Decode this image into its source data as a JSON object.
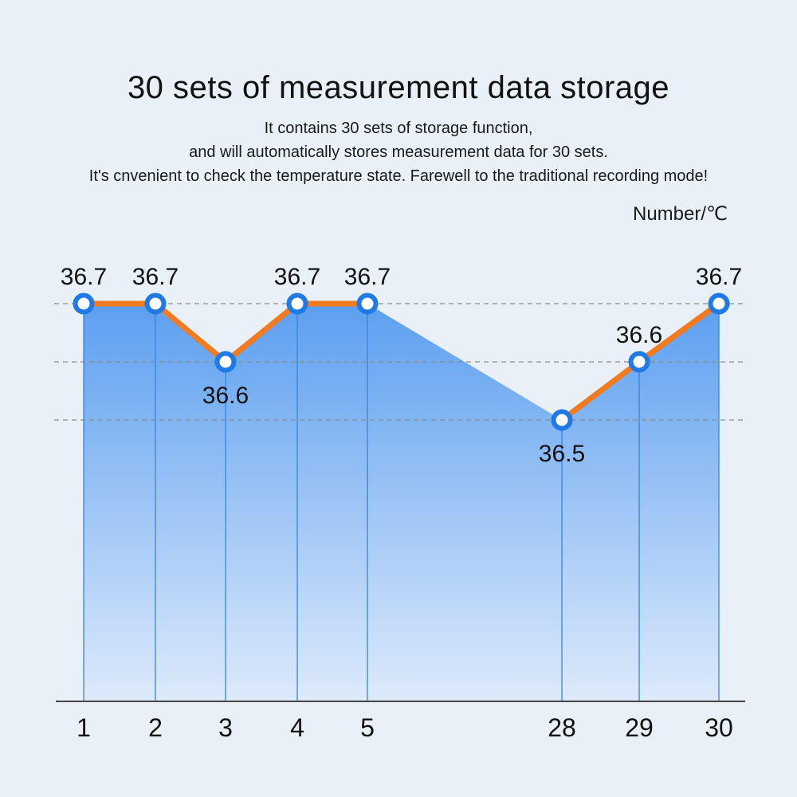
{
  "header": {
    "title": "30 sets of measurement data storage",
    "lines": [
      "It contains 30 sets of storage function,",
      "and will automatically stores measurement data for 30 sets.",
      "It's cnvenient to check the temperature state. Farewell to the traditional recording mode!"
    ]
  },
  "colors": {
    "line": "#f27a1f",
    "marker_stroke": "#1f7ae6",
    "marker_fill": "#ffffff",
    "area_top": "#5c9ff0",
    "area_bottom": "#ddeafb",
    "drop_line": "#2f86e6",
    "grid": "#8a8a8a",
    "axis": "#444444",
    "background": "#e9f0f8"
  },
  "chart_data": {
    "type": "line",
    "ylabel": "Number/℃",
    "categories": [
      "1",
      "2",
      "3",
      "4",
      "5",
      "28",
      "29",
      "30"
    ],
    "values": [
      36.7,
      36.7,
      36.6,
      36.7,
      36.7,
      36.5,
      36.6,
      36.7
    ],
    "value_labels": [
      "36.7",
      "36.7",
      "36.6",
      "36.7",
      "36.7",
      "36.5",
      "36.6",
      "36.7"
    ],
    "series_style": [
      "line",
      "line",
      "line",
      "line",
      "gap",
      "line",
      "line"
    ],
    "gridlines": [
      36.7,
      36.6,
      36.5
    ],
    "grid": true,
    "area_fill": true
  }
}
